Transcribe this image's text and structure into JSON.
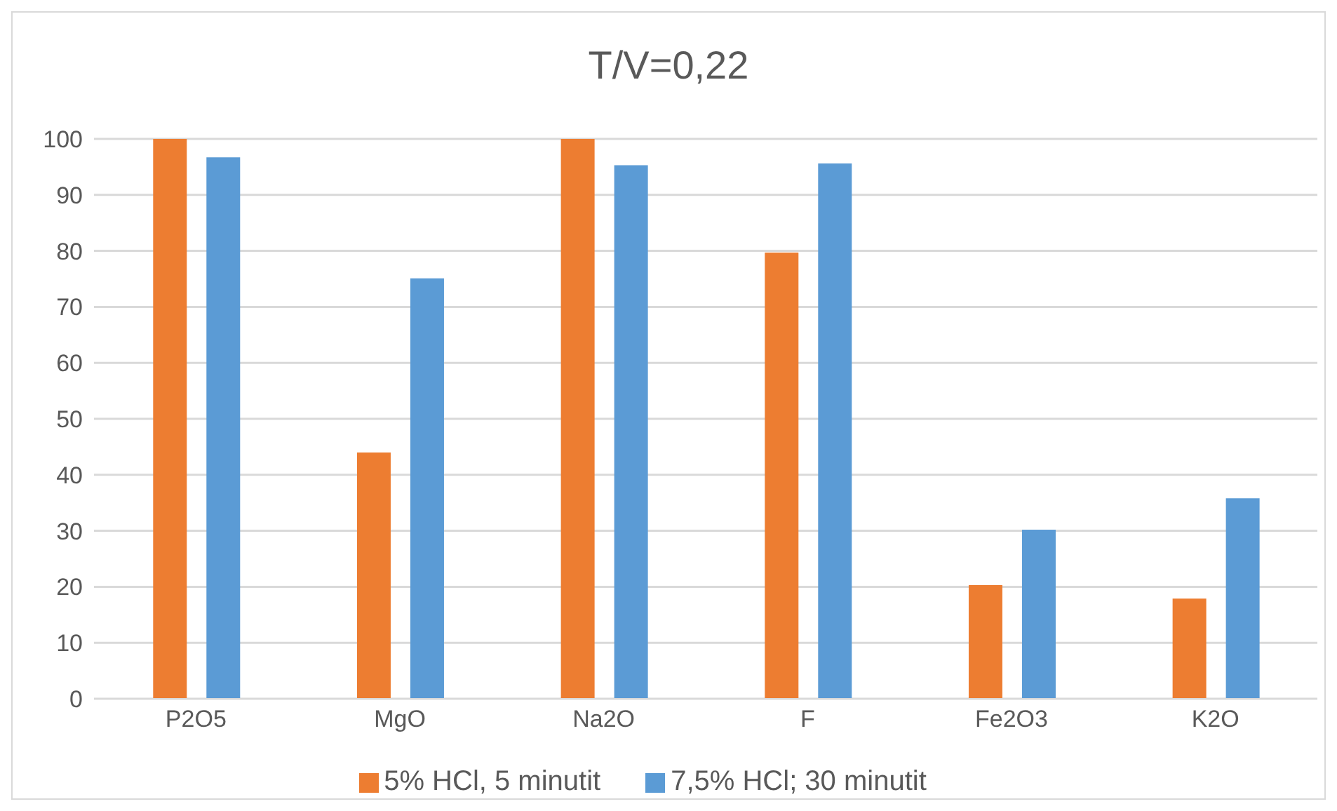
{
  "chart_data": {
    "type": "bar",
    "title": "T/V=0,22",
    "categories": [
      "P2O5",
      "MgO",
      "Na2O",
      "F",
      "Fe2O3",
      "K2O"
    ],
    "series": [
      {
        "name": "5% HCl, 5 minutit",
        "color": "#ed7d31",
        "values": [
          100,
          44,
          100,
          79.7,
          20.3,
          17.9
        ]
      },
      {
        "name": "7,5% HCl; 30 minutit",
        "color": "#5b9bd5",
        "values": [
          96.7,
          75.1,
          95.3,
          95.6,
          30.2,
          35.8
        ]
      }
    ],
    "ylim": [
      0,
      100
    ],
    "yticks": [
      0,
      10,
      20,
      30,
      40,
      50,
      60,
      70,
      80,
      90,
      100
    ],
    "grid": "y",
    "legend": "bottom"
  }
}
